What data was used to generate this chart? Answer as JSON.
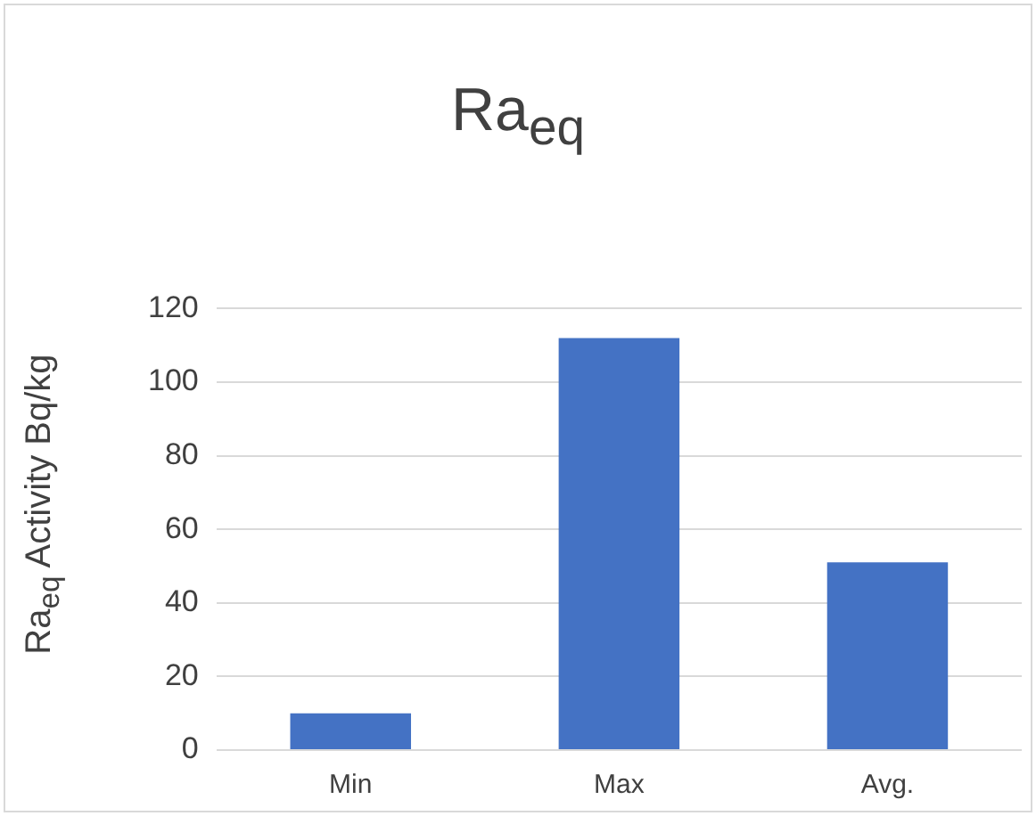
{
  "chart_data": {
    "type": "bar",
    "title": "Ra$_{eq}$",
    "ylabel": "Ra$_{eq}$ Activity Bq/kg",
    "categories": [
      "Min",
      "Max",
      "Avg."
    ],
    "values": [
      10,
      112,
      51
    ],
    "color": "#4472c4",
    "ylim": [
      0,
      120
    ],
    "yticks": [
      0,
      20,
      40,
      60,
      80,
      100,
      120
    ],
    "grid": "y",
    "legend": false
  }
}
